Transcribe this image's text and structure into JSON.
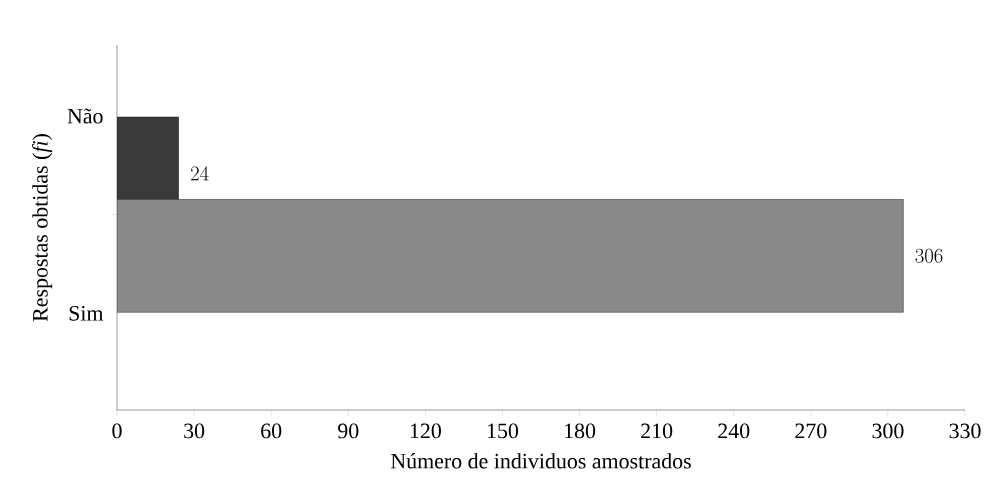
{
  "chart_data": {
    "type": "bar",
    "orientation": "horizontal",
    "ylabel": "Respostas obtidas (*fi*)",
    "xlabel": "Número de individuos amostrados",
    "categories": [
      "Não",
      "Sim"
    ],
    "values": [
      24,
      306
    ],
    "colors": [
      "#3a3a3a",
      "#8a8a8a"
    ],
    "xlim": [
      0,
      330
    ],
    "xticks": [
      0,
      30,
      60,
      90,
      120,
      150,
      180,
      210,
      240,
      270,
      300,
      330
    ],
    "data_labels": true
  }
}
